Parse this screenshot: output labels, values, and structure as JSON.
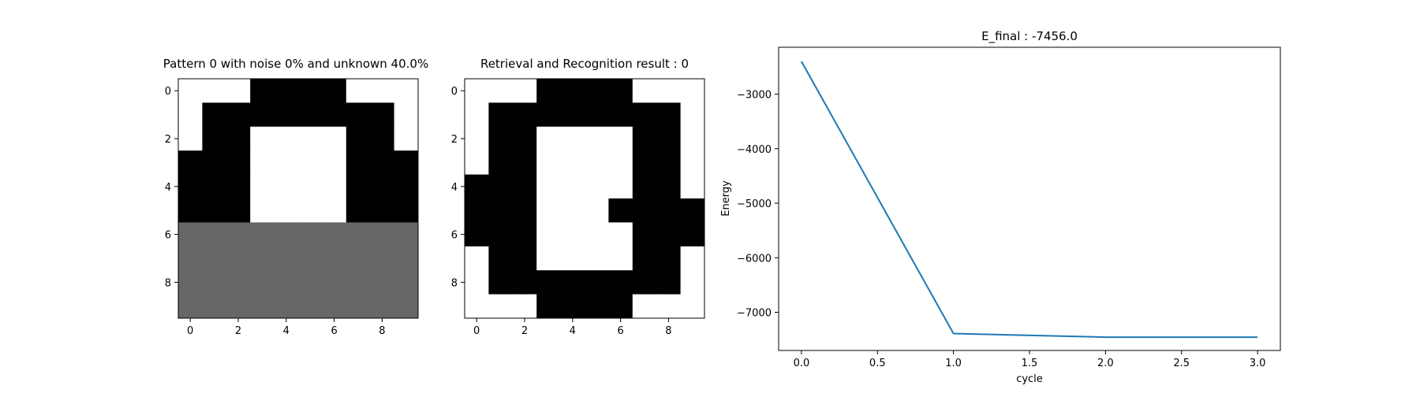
{
  "chart_data": [
    {
      "type": "heatmap",
      "title": "Pattern 0 with noise 0% and unknown 40.0%",
      "rows": 10,
      "cols": 10,
      "xticks": [
        0,
        2,
        4,
        6,
        8
      ],
      "yticks": [
        0,
        2,
        4,
        6,
        8
      ],
      "value_colors": {
        "0": "#ffffff",
        "1": "#000000",
        "2": "#666666"
      },
      "cells": [
        [
          0,
          0,
          0,
          1,
          1,
          1,
          1,
          0,
          0,
          0
        ],
        [
          0,
          1,
          1,
          1,
          1,
          1,
          1,
          1,
          1,
          0
        ],
        [
          0,
          1,
          1,
          0,
          0,
          0,
          0,
          1,
          1,
          0
        ],
        [
          1,
          1,
          1,
          0,
          0,
          0,
          0,
          1,
          1,
          1
        ],
        [
          1,
          1,
          1,
          0,
          0,
          0,
          0,
          1,
          1,
          1
        ],
        [
          1,
          1,
          1,
          0,
          0,
          0,
          0,
          1,
          1,
          1
        ],
        [
          2,
          2,
          2,
          2,
          2,
          2,
          2,
          2,
          2,
          2
        ],
        [
          2,
          2,
          2,
          2,
          2,
          2,
          2,
          2,
          2,
          2
        ],
        [
          2,
          2,
          2,
          2,
          2,
          2,
          2,
          2,
          2,
          2
        ],
        [
          2,
          2,
          2,
          2,
          2,
          2,
          2,
          2,
          2,
          2
        ]
      ]
    },
    {
      "type": "heatmap",
      "title": "Retrieval and Recognition result : 0",
      "rows": 10,
      "cols": 10,
      "xticks": [
        0,
        2,
        4,
        6,
        8
      ],
      "yticks": [
        0,
        2,
        4,
        6,
        8
      ],
      "value_colors": {
        "0": "#ffffff",
        "1": "#000000",
        "2": "#666666"
      },
      "cells": [
        [
          0,
          0,
          0,
          1,
          1,
          1,
          1,
          0,
          0,
          0
        ],
        [
          0,
          1,
          1,
          1,
          1,
          1,
          1,
          1,
          1,
          0
        ],
        [
          0,
          1,
          1,
          0,
          0,
          0,
          0,
          1,
          1,
          0
        ],
        [
          0,
          1,
          1,
          0,
          0,
          0,
          0,
          1,
          1,
          0
        ],
        [
          1,
          1,
          1,
          0,
          0,
          0,
          0,
          1,
          1,
          0
        ],
        [
          1,
          1,
          1,
          0,
          0,
          0,
          1,
          1,
          1,
          1
        ],
        [
          1,
          1,
          1,
          0,
          0,
          0,
          0,
          1,
          1,
          1
        ],
        [
          0,
          1,
          1,
          0,
          0,
          0,
          0,
          1,
          1,
          0
        ],
        [
          0,
          1,
          1,
          1,
          1,
          1,
          1,
          1,
          1,
          0
        ],
        [
          0,
          0,
          0,
          1,
          1,
          1,
          1,
          0,
          0,
          0
        ]
      ]
    },
    {
      "type": "line",
      "title": "E_final : -7456.0",
      "xlabel": "cycle",
      "ylabel": "Energy",
      "x": [
        0,
        1,
        2,
        3
      ],
      "series": [
        {
          "values": [
            -2400,
            -7390,
            -7456,
            -7456
          ],
          "color": "#1f77b4"
        }
      ],
      "xlim": [
        -0.15,
        3.15
      ],
      "ylim": [
        -7700,
        -2140
      ],
      "xticks": [
        "0.0",
        "0.5",
        "1.0",
        "1.5",
        "2.0",
        "2.5",
        "3.0"
      ],
      "yticks": [
        "-3000",
        "-4000",
        "-5000",
        "-6000",
        "-7000"
      ],
      "grid": false
    }
  ]
}
